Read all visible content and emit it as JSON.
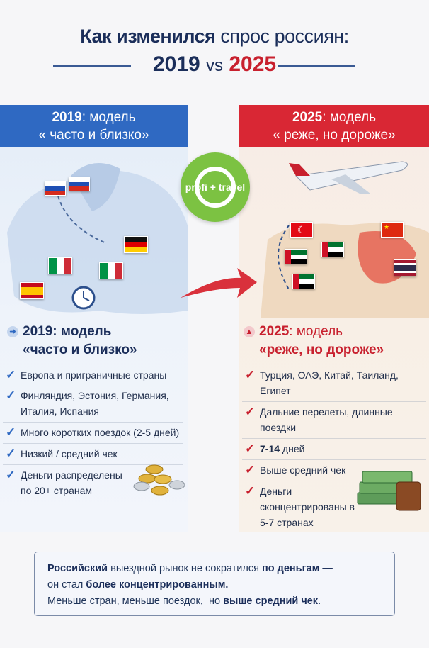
{
  "title": {
    "part1": "Как изменился",
    "part2": "спрос россиян:",
    "year_a": "2019",
    "vs": "vs",
    "year_b": "2025"
  },
  "left": {
    "banner_year": "2019",
    "banner_rest": ": модель",
    "banner_quote": "« часто и близко»",
    "heading_year": "2019",
    "heading_rest": ": модель",
    "heading_quote": "«часто и близко»",
    "heading_icon": "arrow-right-icon",
    "items": [
      "Европа и приграничные страны",
      "Финляндия, Эстония, Германия, Италия, Испания",
      "Много коротких поездок (2-5 дней)",
      "Низкий / средний чек",
      "Деньги распределены по 20+ странам"
    ],
    "accent": "#2f69c2"
  },
  "right": {
    "banner_year": "2025",
    "banner_rest": ": модель",
    "banner_quote": "« реже, но дороже»",
    "heading_year": "2025",
    "heading_rest": ": модель",
    "heading_quote": "«реже, но дороже»",
    "heading_icon": "arrow-up-icon",
    "items": [
      "Турция, ОАЭ, Китай, Таиланд, Египет",
      "Дальние перелеты, длинные поездки",
      "дней",
      "Выше средний чек",
      "Деньги сконцентрированы в 5-7 странах"
    ],
    "item3_bold": "7-14",
    "accent": "#d92734"
  },
  "logo": {
    "text": "profi + travel",
    "color": "#7cc242"
  },
  "summary": {
    "l1_b1": "Российский",
    "l1_t": " выездной рынок не сократился ",
    "l1_b2": "по деньгам —",
    "l2_t": "он стал ",
    "l2_b": "более концентрированным.",
    "l3_t": "Меньше стран, меньше поездок,  но ",
    "l3_b": "выше средний чек",
    "l3_end": "."
  }
}
